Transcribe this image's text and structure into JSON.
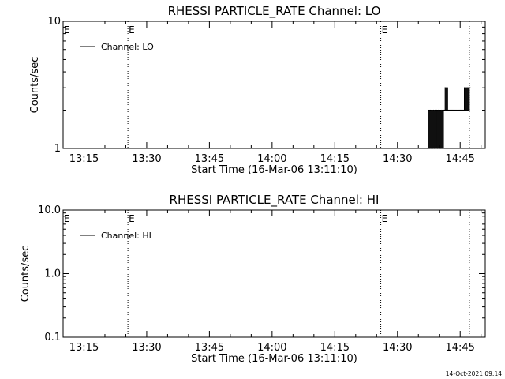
{
  "footer": {
    "timestamp": "14-Oct-2021 09:14"
  },
  "chart_data": [
    {
      "type": "line",
      "title": "RHESSI PARTICLE_RATE Channel: LO",
      "xlabel": "Start Time (16-Mar-06 13:11:10)",
      "ylabel": "Counts/sec",
      "x_range_min": [
        790,
        891
      ],
      "x_ticks": [
        {
          "min": 795,
          "label": "13:15"
        },
        {
          "min": 810,
          "label": "13:30"
        },
        {
          "min": 825,
          "label": "13:45"
        },
        {
          "min": 840,
          "label": "14:00"
        },
        {
          "min": 855,
          "label": "14:15"
        },
        {
          "min": 870,
          "label": "14:30"
        },
        {
          "min": 885,
          "label": "14:45"
        }
      ],
      "y_scale": "log",
      "ylim": [
        1,
        10
      ],
      "y_ticks": [
        {
          "value": 1,
          "label": "1"
        },
        {
          "value": 10,
          "label": "10"
        }
      ],
      "legend": {
        "label": "Channel: LO",
        "position": "top-left"
      },
      "markers": [
        {
          "min": 805.5,
          "label": "E"
        },
        {
          "min": 866.0,
          "label": "E"
        },
        {
          "min": 887.2,
          "label": ""
        }
      ],
      "series": [
        {
          "name": "Channel: LO",
          "x_min": [
            877.2,
            877.4,
            877.6,
            877.8,
            878.0,
            878.2,
            878.4,
            878.6,
            878.8,
            879.0,
            879.2,
            879.4,
            879.6,
            879.8,
            880.0,
            880.2,
            880.4,
            880.6,
            880.8,
            881.0,
            881.2,
            881.4,
            881.6,
            881.8,
            882.0,
            882.2,
            882.4,
            882.6,
            882.8,
            883.0,
            883.2,
            883.4,
            883.6,
            883.8,
            884.0,
            884.2,
            884.4,
            884.6,
            884.8,
            885.0,
            885.2,
            885.4,
            885.6,
            885.8,
            886.0,
            886.2,
            886.4,
            886.6,
            886.8,
            887.0,
            887.2,
            887.4
          ],
          "values": [
            1,
            2,
            1,
            2,
            1,
            2,
            1,
            2,
            1,
            2,
            1,
            2,
            1,
            2,
            1,
            2,
            1,
            2,
            1,
            2,
            2,
            3,
            2,
            3,
            2,
            2,
            2,
            2,
            2,
            2,
            2,
            2,
            2,
            2,
            2,
            2,
            2,
            2,
            2,
            2,
            2,
            2,
            2,
            2,
            3,
            2,
            3,
            2,
            3,
            2,
            3,
            3
          ]
        }
      ]
    },
    {
      "type": "line",
      "title": "RHESSI PARTICLE_RATE Channel: HI",
      "xlabel": "Start Time (16-Mar-06 13:11:10)",
      "ylabel": "Counts/sec",
      "x_range_min": [
        790,
        891
      ],
      "x_ticks": [
        {
          "min": 795,
          "label": "13:15"
        },
        {
          "min": 810,
          "label": "13:30"
        },
        {
          "min": 825,
          "label": "13:45"
        },
        {
          "min": 840,
          "label": "14:00"
        },
        {
          "min": 855,
          "label": "14:15"
        },
        {
          "min": 870,
          "label": "14:30"
        },
        {
          "min": 885,
          "label": "14:45"
        }
      ],
      "y_scale": "log",
      "ylim": [
        0.1,
        10
      ],
      "y_ticks": [
        {
          "value": 0.1,
          "label": "0.1"
        },
        {
          "value": 1,
          "label": "1.0"
        },
        {
          "value": 10,
          "label": "10.0"
        }
      ],
      "legend": {
        "label": "Channel: HI",
        "position": "top-left"
      },
      "markers": [
        {
          "min": 805.5,
          "label": "E"
        },
        {
          "min": 866.0,
          "label": "E"
        },
        {
          "min": 887.2,
          "label": ""
        }
      ],
      "series": [
        {
          "name": "Channel: HI",
          "x_min": [],
          "values": []
        }
      ]
    }
  ]
}
